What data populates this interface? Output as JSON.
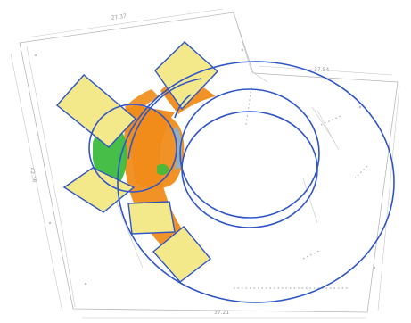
{
  "drawing": {
    "dimension_labels": [
      "27.37",
      "37.54",
      "42.36",
      "37.21"
    ],
    "colors": {
      "outline": "#2f56c8",
      "pad_fill": "#f3e98a",
      "orange": "#f08c1a",
      "green": "#3dbb3d",
      "sheet_line": "#b8b8b8"
    }
  }
}
